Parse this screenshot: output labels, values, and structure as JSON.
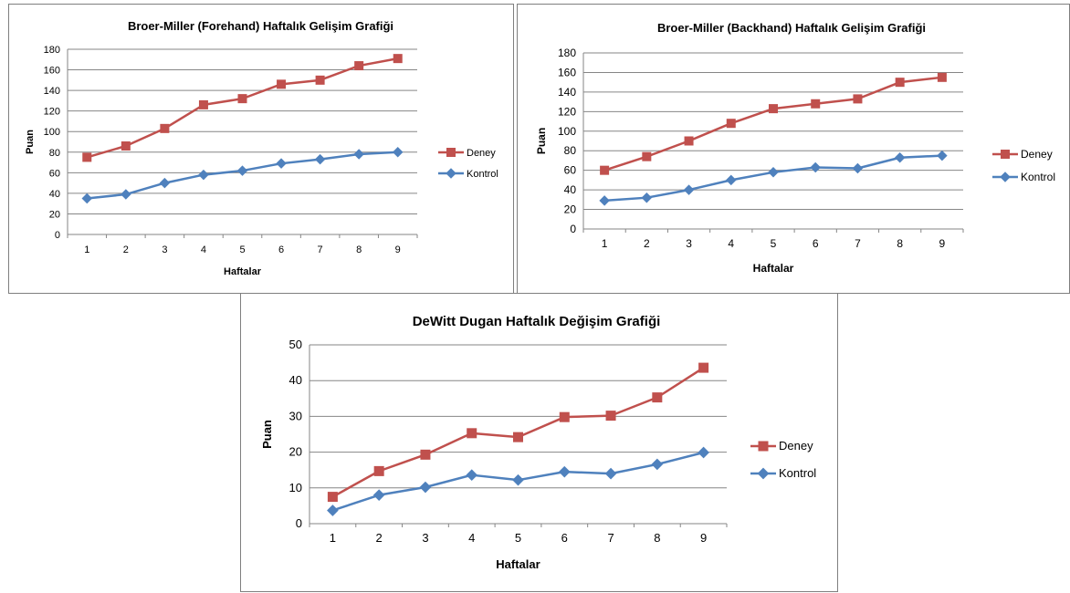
{
  "colors": {
    "deney": "#C0504D",
    "kontrol": "#4F81BD",
    "grid": "#868686",
    "axis": "#868686"
  },
  "chart_data": [
    {
      "type": "line",
      "title": "Broer-Miller (Forehand) Haftalık Gelişim Grafiği",
      "xlabel": "Haftalar",
      "ylabel": "Puan",
      "categories": [
        "1",
        "2",
        "3",
        "4",
        "5",
        "6",
        "7",
        "8",
        "9"
      ],
      "ylim": [
        0,
        180
      ],
      "yticks": [
        "0",
        "20",
        "40",
        "60",
        "80",
        "100",
        "120",
        "140",
        "160",
        "180"
      ],
      "grid": true,
      "legend": "right",
      "series": [
        {
          "name": "Deney",
          "marker": "square",
          "color": "#C0504D",
          "values": [
            75,
            86,
            103,
            126,
            132,
            146,
            150,
            164,
            171
          ]
        },
        {
          "name": "Kontrol",
          "marker": "diamond",
          "color": "#4F81BD",
          "values": [
            35,
            39,
            50,
            58,
            62,
            69,
            73,
            78,
            80
          ]
        }
      ]
    },
    {
      "type": "line",
      "title": "Broer-Miller (Backhand) Haftalık Gelişim Grafiği",
      "xlabel": "Haftalar",
      "ylabel": "Puan",
      "categories": [
        "1",
        "2",
        "3",
        "4",
        "5",
        "6",
        "7",
        "8",
        "9"
      ],
      "ylim": [
        0,
        180
      ],
      "yticks": [
        "0",
        "20",
        "40",
        "60",
        "80",
        "100",
        "120",
        "140",
        "160",
        "180"
      ],
      "grid": true,
      "legend": "right",
      "series": [
        {
          "name": "Deney",
          "marker": "square",
          "color": "#C0504D",
          "values": [
            60,
            74,
            90,
            108,
            123,
            128,
            133,
            150,
            155
          ]
        },
        {
          "name": "Kontrol",
          "marker": "diamond",
          "color": "#4F81BD",
          "values": [
            29,
            32,
            40,
            50,
            58,
            63,
            62,
            73,
            75
          ]
        }
      ]
    },
    {
      "type": "line",
      "title": "DeWitt Dugan Haftalık Değişim Grafiği",
      "xlabel": "Haftalar",
      "ylabel": "Puan",
      "categories": [
        "1",
        "2",
        "3",
        "4",
        "5",
        "6",
        "7",
        "8",
        "9"
      ],
      "ylim": [
        0,
        50
      ],
      "yticks": [
        "0",
        "10",
        "20",
        "30",
        "40",
        "50"
      ],
      "grid": true,
      "legend": "right",
      "series": [
        {
          "name": "Deney",
          "marker": "square",
          "color": "#C0504D",
          "values": [
            7.5,
            14.7,
            19.3,
            25.3,
            24.2,
            29.8,
            30.2,
            35.3,
            43.6
          ]
        },
        {
          "name": "Kontrol",
          "marker": "diamond",
          "color": "#4F81BD",
          "values": [
            3.7,
            8.0,
            10.2,
            13.6,
            12.2,
            14.5,
            14.0,
            16.6,
            19.9
          ]
        }
      ]
    }
  ]
}
